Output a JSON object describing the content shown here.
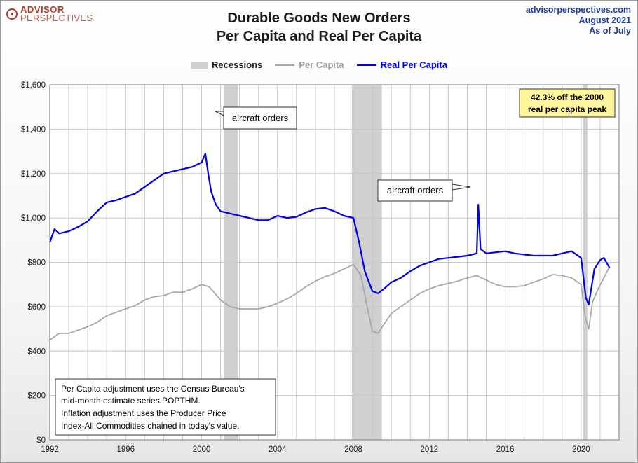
{
  "brand": {
    "line1": "ADVISOR",
    "line2": "PERSPECTIVES"
  },
  "source": {
    "line1": "advisorperspectives.com",
    "line2": "August  2021",
    "line3": "As  of July"
  },
  "colors": {
    "recession": "#d0d0d0",
    "per_capita": "#a8a8a8",
    "real_per_capita": "#0000ee",
    "callout_fill": "#fff59d"
  },
  "chart_data": {
    "type": "line",
    "title": "Durable Goods New Orders",
    "subtitle": "Per Capita and Real Per Capita",
    "legend": {
      "placement": "top-center",
      "recession_label": "Recessions"
    },
    "x_ticks": [
      "1992",
      "1996",
      "2000",
      "2004",
      "2008",
      "2012",
      "2016",
      "2020"
    ],
    "y_ticks": [
      "$0",
      "$200",
      "$400",
      "$600",
      "$800",
      "$1,000",
      "$1,200",
      "$1,400",
      "$1,600"
    ],
    "xlim": [
      1992,
      2022
    ],
    "ylim": [
      0,
      1600
    ],
    "grid": true,
    "recessions": [
      [
        2001.17,
        2001.92
      ],
      [
        2007.92,
        2009.5
      ],
      [
        2020.08,
        2020.33
      ]
    ],
    "series": [
      {
        "name": "Per Capita",
        "x": [
          1992.0,
          1992.5,
          1993.0,
          1993.5,
          1994.0,
          1994.5,
          1995.0,
          1995.5,
          1996.0,
          1996.5,
          1997.0,
          1997.5,
          1998.0,
          1998.5,
          1999.0,
          1999.5,
          2000.0,
          2000.4,
          2000.7,
          2001.0,
          2001.5,
          2002.0,
          2002.5,
          2003.0,
          2003.5,
          2004.0,
          2004.5,
          2005.0,
          2005.5,
          2006.0,
          2006.5,
          2007.0,
          2007.5,
          2008.0,
          2008.4,
          2008.7,
          2009.0,
          2009.3,
          2009.6,
          2010.0,
          2010.5,
          2011.0,
          2011.5,
          2012.0,
          2012.5,
          2013.0,
          2013.5,
          2014.0,
          2014.5,
          2015.0,
          2015.5,
          2016.0,
          2016.5,
          2017.0,
          2017.5,
          2018.0,
          2018.5,
          2019.0,
          2019.5,
          2020.0,
          2020.2,
          2020.4,
          2020.6,
          2020.9,
          2021.2,
          2021.5
        ],
        "values": [
          450,
          480,
          480,
          495,
          510,
          530,
          560,
          575,
          590,
          605,
          630,
          645,
          650,
          665,
          665,
          680,
          700,
          690,
          660,
          630,
          600,
          590,
          590,
          590,
          600,
          615,
          635,
          660,
          690,
          715,
          735,
          750,
          770,
          790,
          740,
          610,
          490,
          480,
          520,
          570,
          600,
          630,
          660,
          680,
          695,
          705,
          715,
          730,
          740,
          720,
          700,
          690,
          690,
          695,
          710,
          725,
          745,
          740,
          730,
          700,
          560,
          500,
          620,
          680,
          730,
          780
        ]
      },
      {
        "name": "Real Per Capita",
        "x": [
          1992.0,
          1992.25,
          1992.5,
          1993.0,
          1993.5,
          1994.0,
          1994.5,
          1995.0,
          1995.5,
          1996.0,
          1996.5,
          1997.0,
          1997.5,
          1998.0,
          1998.5,
          1999.0,
          1999.5,
          2000.0,
          2000.2,
          2000.35,
          2000.5,
          2000.75,
          2001.0,
          2001.5,
          2002.0,
          2002.5,
          2003.0,
          2003.5,
          2004.0,
          2004.5,
          2005.0,
          2005.5,
          2006.0,
          2006.5,
          2007.0,
          2007.5,
          2008.0,
          2008.3,
          2008.6,
          2009.0,
          2009.3,
          2009.6,
          2010.0,
          2010.5,
          2011.0,
          2011.5,
          2012.0,
          2012.5,
          2013.0,
          2013.5,
          2014.0,
          2014.5,
          2014.58,
          2014.7,
          2015.0,
          2015.5,
          2016.0,
          2016.5,
          2017.0,
          2017.5,
          2018.0,
          2018.5,
          2019.0,
          2019.5,
          2020.0,
          2020.25,
          2020.4,
          2020.7,
          2021.0,
          2021.2,
          2021.5
        ],
        "values": [
          890,
          950,
          930,
          940,
          960,
          985,
          1030,
          1070,
          1080,
          1095,
          1110,
          1140,
          1170,
          1200,
          1210,
          1220,
          1230,
          1250,
          1290,
          1200,
          1120,
          1060,
          1030,
          1020,
          1010,
          1000,
          990,
          990,
          1010,
          1000,
          1005,
          1025,
          1040,
          1045,
          1030,
          1010,
          1000,
          890,
          760,
          670,
          660,
          680,
          710,
          730,
          760,
          785,
          800,
          815,
          820,
          825,
          830,
          840,
          1060,
          860,
          840,
          845,
          850,
          840,
          835,
          830,
          830,
          830,
          840,
          850,
          820,
          640,
          610,
          770,
          810,
          820,
          775
        ]
      }
    ],
    "annotations": {
      "aircraft_1": "aircraft orders",
      "aircraft_2": "aircraft orders",
      "peak_line1": "42.3% off the 2000",
      "peak_line2": "real per capita peak",
      "note_line1": "Per Capita adjustment uses the Census Bureau's",
      "note_line2": "mid-month estimate series POPTHM.",
      "note_line3": "Inflation adjustment uses the Producer Price",
      "note_line4": "Index-All Commodities chained in today's value."
    }
  }
}
